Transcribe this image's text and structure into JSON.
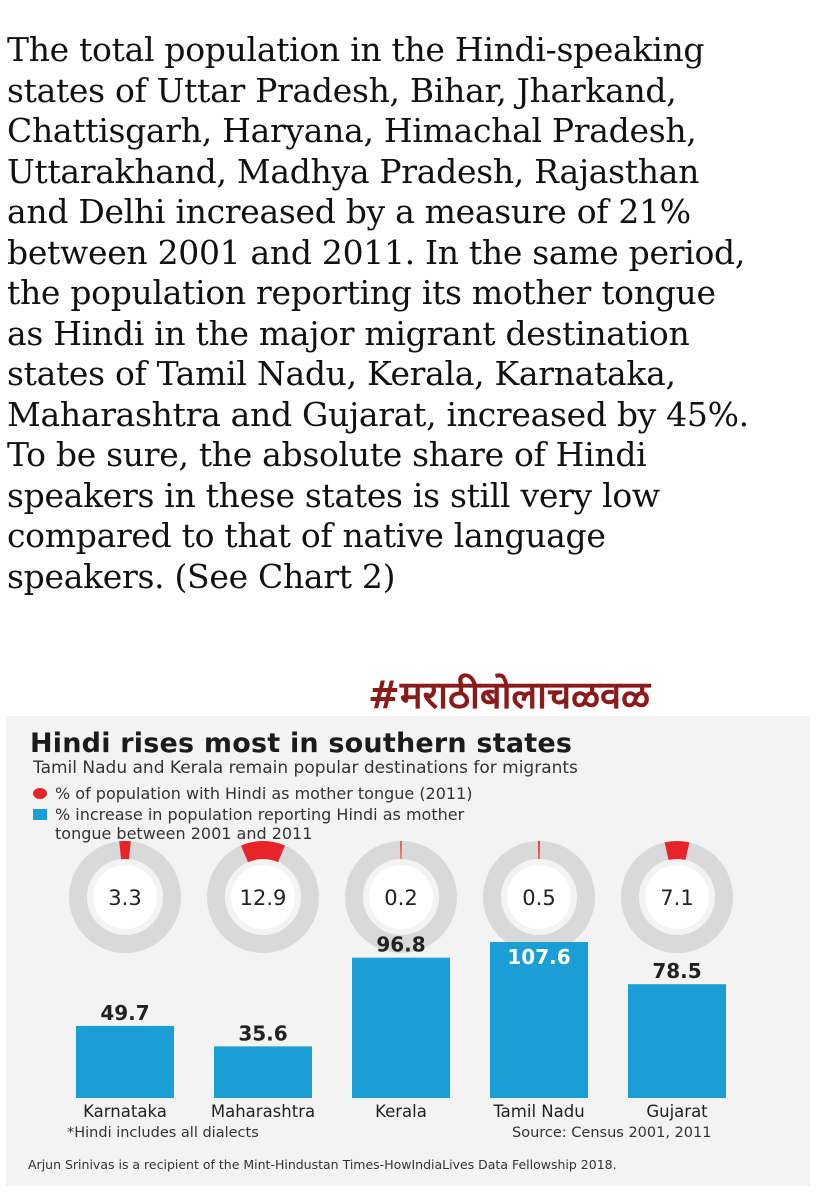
{
  "article": {
    "text": "The total population in the Hindi-speaking\nstates of Uttar Pradesh, Bihar, Jharkand,\nChattisgarh, Haryana, Himachal Pradesh,\nUttarakhand, Madhya Pradesh, Rajasthan\nand Delhi increased by a measure of 21%\nbetween 2001 and 2011. In the same period,\nthe population reporting its mother tongue\nas Hindi in the major migrant destination\nstates of Tamil Nadu, Kerala, Karnataka,\nMaharashtra and Gujarat, increased by 45%.\nTo be sure, the absolute share of Hindi\nspeakers in these states is still very low\ncompared to that of native language\nspeakers. (See Chart 2)"
  },
  "hashtag": "#मराठीबोलाचळवळ",
  "colors": {
    "ring_bg": "#d9d9d9",
    "ring_fill": "#e8242b",
    "bar": "#1b9ed6",
    "panel_bg": "#f3f3f3"
  },
  "chart_data": {
    "type": "bar",
    "title": "Hindi rises most in southern states",
    "subtitle": "Tamil Nadu and Kerala remain popular destinations for migrants",
    "legend": [
      {
        "label": "% of population with Hindi as mother tongue (2011)",
        "color": "#e8242b",
        "shape": "circle"
      },
      {
        "label": "% increase in population reporting Hindi as mother\ntongue between 2001 and 2011",
        "color": "#1b9ed6",
        "shape": "square"
      }
    ],
    "legend_placement": "top-left",
    "grid": false,
    "categories": [
      "Karnataka",
      "Maharashtra",
      "Kerala",
      "Tamil Nadu",
      "Gujarat"
    ],
    "series": [
      {
        "name": "% of population with Hindi as mother tongue (2011)",
        "values": [
          3.3,
          12.9,
          0.2,
          0.5,
          7.1
        ],
        "value_labels": [
          "3.3",
          "12.9",
          "0.2",
          "0.5",
          "7.1"
        ]
      },
      {
        "name": "% increase in population reporting Hindi as mother tongue between 2001 and 2011",
        "values": [
          49.7,
          35.6,
          96.8,
          107.6,
          78.5
        ],
        "value_labels": [
          "49.7",
          "35.6",
          "96.8",
          "107.6",
          "78.5"
        ]
      }
    ],
    "ylim": [
      0,
      107.6
    ],
    "footnote": "*Hindi includes all dialects",
    "source": "Source: Census 2001, 2011"
  },
  "credit": "Arjun Srinivas is a recipient of the Mint-Hindustan Times-HowIndiaLives Data Fellowship 2018."
}
